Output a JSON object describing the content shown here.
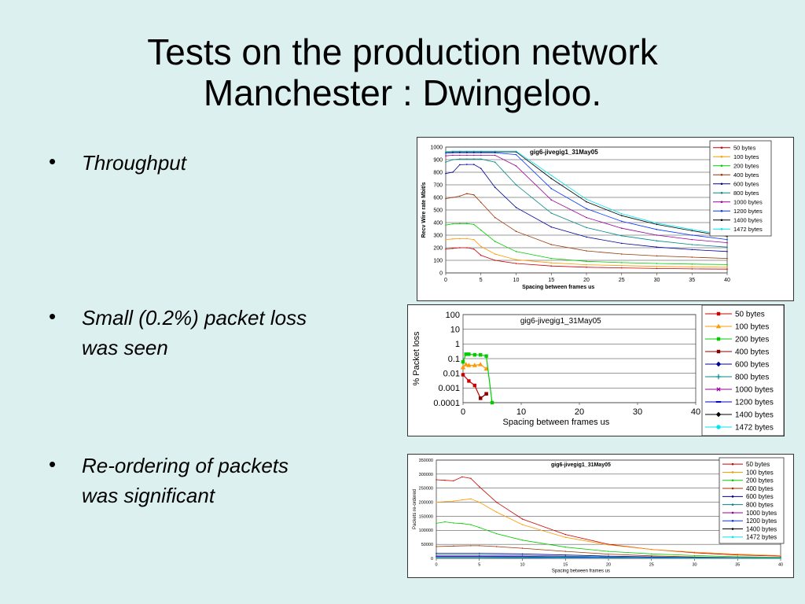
{
  "slide": {
    "title_line1": "Tests on the production network",
    "title_line2": "Manchester : Dwingeloo.",
    "bullets": [
      {
        "line1": "Throughput",
        "line2": ""
      },
      {
        "line1": " Small (0.2%) packet loss",
        "line2": "was seen"
      },
      {
        "line1": " Re-ordering of packets",
        "line2": "was significant"
      }
    ],
    "bullet_glyph": "•"
  },
  "chart_data": [
    {
      "type": "line",
      "title": "gig6-jivegig1_31May05",
      "xlabel": "Spacing between frames us",
      "ylabel": "Recv Wire rate Mbit/s",
      "xlim": [
        0,
        40
      ],
      "ylim": [
        0,
        1000
      ],
      "xticks": [
        0,
        5,
        10,
        15,
        20,
        25,
        30,
        35,
        40
      ],
      "yticks": [
        0,
        100,
        200,
        300,
        400,
        500,
        600,
        700,
        800,
        900,
        1000
      ],
      "grid": "horizontal",
      "legend_position": "right",
      "series": [
        {
          "name": "50 bytes",
          "color": "#cc0000",
          "x": [
            0,
            1,
            2,
            3,
            4,
            5,
            7,
            10,
            15,
            20,
            25,
            30,
            35,
            40
          ],
          "y": [
            190,
            195,
            200,
            200,
            190,
            140,
            100,
            75,
            55,
            45,
            40,
            35,
            32,
            30
          ]
        },
        {
          "name": "100 bytes",
          "color": "#ff9900",
          "x": [
            0,
            1,
            2,
            3,
            4,
            5,
            7,
            10,
            15,
            20,
            25,
            30,
            35,
            40
          ],
          "y": [
            265,
            270,
            272,
            272,
            265,
            210,
            150,
            105,
            80,
            65,
            58,
            52,
            48,
            45
          ]
        },
        {
          "name": "200 bytes",
          "color": "#00cc00",
          "x": [
            0,
            1,
            2,
            3,
            4,
            5,
            7,
            10,
            15,
            20,
            25,
            30,
            35,
            40
          ],
          "y": [
            380,
            390,
            392,
            392,
            385,
            340,
            250,
            170,
            115,
            92,
            82,
            75,
            70,
            66
          ]
        },
        {
          "name": "400 bytes",
          "color": "#993300",
          "x": [
            0,
            1,
            2,
            3,
            4,
            5,
            7,
            10,
            15,
            20,
            25,
            30,
            35,
            40
          ],
          "y": [
            590,
            600,
            610,
            630,
            620,
            560,
            440,
            330,
            225,
            175,
            150,
            135,
            125,
            115
          ]
        },
        {
          "name": "600 bytes",
          "color": "#000099",
          "x": [
            0,
            1,
            2,
            3,
            4,
            5,
            7,
            10,
            15,
            20,
            25,
            30,
            35,
            40
          ],
          "y": [
            790,
            800,
            860,
            862,
            862,
            830,
            680,
            520,
            365,
            285,
            235,
            205,
            185,
            170
          ]
        },
        {
          "name": "800 bytes",
          "color": "#008888",
          "x": [
            0,
            1,
            2,
            3,
            4,
            5,
            7,
            10,
            15,
            20,
            25,
            30,
            35,
            40
          ],
          "y": [
            880,
            900,
            905,
            905,
            905,
            905,
            880,
            700,
            475,
            360,
            295,
            255,
            225,
            205
          ]
        },
        {
          "name": "1000 bytes",
          "color": "#990099",
          "x": [
            0,
            1,
            2,
            3,
            4,
            5,
            7,
            10,
            15,
            20,
            25,
            30,
            35,
            40
          ],
          "y": [
            930,
            935,
            935,
            935,
            935,
            935,
            935,
            850,
            580,
            440,
            355,
            300,
            265,
            240
          ]
        },
        {
          "name": "1200 bytes",
          "color": "#0033ff",
          "x": [
            0,
            1,
            2,
            3,
            4,
            5,
            7,
            10,
            15,
            20,
            25,
            30,
            35,
            40
          ],
          "y": [
            950,
            955,
            955,
            955,
            955,
            955,
            955,
            940,
            670,
            510,
            410,
            345,
            300,
            265
          ]
        },
        {
          "name": "1400 bytes",
          "color": "#000000",
          "x": [
            0,
            1,
            2,
            3,
            4,
            5,
            7,
            10,
            15,
            20,
            25,
            30,
            35,
            40
          ],
          "y": [
            960,
            962,
            962,
            962,
            962,
            962,
            962,
            962,
            750,
            565,
            455,
            385,
            335,
            290
          ]
        },
        {
          "name": "1472 bytes",
          "color": "#00e5ee",
          "x": [
            0,
            1,
            2,
            3,
            4,
            5,
            7,
            10,
            15,
            20,
            25,
            30,
            35,
            40
          ],
          "y": [
            965,
            968,
            968,
            968,
            968,
            968,
            968,
            968,
            775,
            585,
            470,
            395,
            345,
            300
          ]
        }
      ]
    },
    {
      "type": "line",
      "title": "gig6-jivegig1_31May05",
      "xlabel": "Spacing between frames us",
      "ylabel": "% Packet loss",
      "yscale": "log",
      "xlim": [
        0,
        40
      ],
      "ylim": [
        0.0001,
        100
      ],
      "xticks": [
        0,
        10,
        20,
        30,
        40
      ],
      "yticks": [
        100,
        10,
        1,
        0.1,
        0.01,
        0.001,
        0.0001
      ],
      "ytick_labels": [
        "100",
        "10",
        "1",
        "0.1",
        "0.01",
        "0.001",
        "0.0001"
      ],
      "grid": "horizontal",
      "legend_position": "right",
      "series": [
        {
          "name": "50 bytes",
          "color": "#cc0000",
          "marker": "square",
          "x": [
            0,
            1,
            2,
            3,
            4
          ],
          "y": [
            0.008,
            0.003,
            0.0015,
            0.0002,
            0.0004
          ]
        },
        {
          "name": "100 bytes",
          "color": "#ff9900",
          "marker": "triangle",
          "x": [
            0,
            0.5,
            1,
            2,
            3,
            4
          ],
          "y": [
            0.025,
            0.04,
            0.035,
            0.035,
            0.04,
            0.02
          ]
        },
        {
          "name": "200 bytes",
          "color": "#00cc00",
          "marker": "square",
          "x": [
            0,
            0.5,
            1,
            2,
            3,
            4,
            5
          ],
          "y": [
            0.06,
            0.2,
            0.2,
            0.18,
            0.18,
            0.15,
            0.0001
          ]
        },
        {
          "name": "400 bytes",
          "color": "#880000",
          "marker": "square",
          "x": [
            3,
            4
          ],
          "y": [
            0.0002,
            0.0004
          ]
        },
        {
          "name": "600 bytes",
          "color": "#000099",
          "marker": "diamond",
          "x": [],
          "y": []
        },
        {
          "name": "800 bytes",
          "color": "#008888",
          "marker": "plus",
          "x": [],
          "y": []
        },
        {
          "name": "1000 bytes",
          "color": "#990099",
          "marker": "x",
          "x": [],
          "y": []
        },
        {
          "name": "1200 bytes",
          "color": "#0000cc",
          "marker": "dash",
          "x": [],
          "y": []
        },
        {
          "name": "1400 bytes",
          "color": "#000000",
          "marker": "diamond",
          "x": [],
          "y": []
        },
        {
          "name": "1472 bytes",
          "color": "#00e5ee",
          "marker": "circle",
          "x": [],
          "y": []
        }
      ]
    },
    {
      "type": "line",
      "title": "gig6-jivegig1_31May05",
      "xlabel": "Spacing between frames us",
      "ylabel": "Packets re-ordered",
      "xlim": [
        0,
        40
      ],
      "ylim": [
        0,
        350000
      ],
      "xticks": [
        0,
        5,
        10,
        15,
        20,
        25,
        30,
        35,
        40
      ],
      "yticks": [
        0,
        50000,
        100000,
        150000,
        200000,
        250000,
        300000,
        350000
      ],
      "grid": "horizontal",
      "legend_position": "right",
      "series": [
        {
          "name": "50 bytes",
          "color": "#cc0000",
          "x": [
            0,
            1,
            2,
            3,
            4,
            5,
            7,
            10,
            15,
            20,
            25,
            30,
            35,
            40
          ],
          "y": [
            280000,
            278000,
            276000,
            290000,
            285000,
            255000,
            200000,
            140000,
            85000,
            50000,
            32000,
            20000,
            12000,
            8000
          ]
        },
        {
          "name": "100 bytes",
          "color": "#ff9900",
          "x": [
            0,
            1,
            2,
            3,
            4,
            5,
            7,
            10,
            15,
            20,
            25,
            30,
            35,
            40
          ],
          "y": [
            200000,
            202000,
            204000,
            208000,
            212000,
            200000,
            165000,
            120000,
            75000,
            48000,
            32000,
            22000,
            15000,
            10000
          ]
        },
        {
          "name": "200 bytes",
          "color": "#00cc00",
          "x": [
            0,
            1,
            2,
            3,
            4,
            5,
            7,
            10,
            15,
            20,
            25,
            30,
            35,
            40
          ],
          "y": [
            125000,
            130000,
            126000,
            124000,
            120000,
            110000,
            88000,
            65000,
            40000,
            25000,
            16000,
            10000,
            6000,
            4000
          ]
        },
        {
          "name": "400 bytes",
          "color": "#993300",
          "x": [
            0,
            2,
            4,
            5,
            7,
            10,
            15,
            20,
            25,
            30,
            35,
            40
          ],
          "y": [
            42000,
            44000,
            45000,
            45000,
            42000,
            36000,
            25000,
            15000,
            9000,
            5000,
            3000,
            2000
          ]
        },
        {
          "name": "600 bytes",
          "color": "#000099",
          "x": [
            0,
            5,
            10,
            15,
            20,
            25,
            30,
            35,
            40
          ],
          "y": [
            18000,
            18000,
            16000,
            12000,
            8000,
            5000,
            3000,
            2000,
            1500
          ]
        },
        {
          "name": "800 bytes",
          "color": "#008888",
          "x": [
            0,
            5,
            10,
            15,
            20,
            25,
            30,
            35,
            40
          ],
          "y": [
            12000,
            12000,
            11000,
            8000,
            5000,
            3000,
            2000,
            1500,
            1000
          ]
        },
        {
          "name": "1000 bytes",
          "color": "#990099",
          "x": [
            0,
            5,
            10,
            15,
            20,
            25,
            30,
            35,
            40
          ],
          "y": [
            8000,
            8000,
            7500,
            5500,
            3500,
            2500,
            1500,
            1000,
            800
          ]
        },
        {
          "name": "1200 bytes",
          "color": "#0033ff",
          "x": [
            0,
            5,
            10,
            15,
            20,
            25,
            30,
            35,
            40
          ],
          "y": [
            6000,
            6000,
            5500,
            4000,
            2500,
            1800,
            1200,
            800,
            600
          ]
        },
        {
          "name": "1400 bytes",
          "color": "#000000",
          "x": [
            0,
            5,
            10,
            15,
            20,
            25,
            30,
            35,
            40
          ],
          "y": [
            4000,
            4000,
            3500,
            2500,
            1800,
            1200,
            800,
            600,
            400
          ]
        },
        {
          "name": "1472 bytes",
          "color": "#00e5ee",
          "x": [
            0,
            5,
            10,
            15,
            20,
            25,
            30,
            35,
            40
          ],
          "y": [
            3000,
            3000,
            2800,
            2000,
            1400,
            1000,
            700,
            500,
            300
          ]
        }
      ]
    }
  ]
}
